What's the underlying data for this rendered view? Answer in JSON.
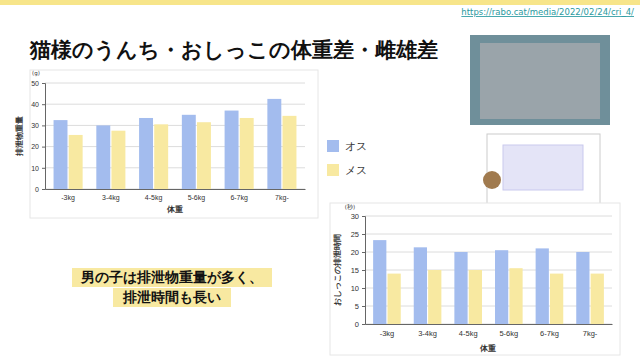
{
  "slide": {
    "title": "猫様のうんち・おしっこの体重差・雌雄差",
    "url": "https://rabo.cat/media/2022/02/24/cri_4/",
    "note_lines": [
      "男の子は排泄物重量が多く、",
      "排泄時間も長い"
    ]
  },
  "chart_data": [
    {
      "type": "bar",
      "x_label": "体重",
      "y_label": "排泄物重量",
      "y_unit": "(g)",
      "categories": [
        "-3kg",
        "3-4kg",
        "4-5kg",
        "5-6kg",
        "6-7kg",
        "7kg-"
      ],
      "series": [
        {
          "name": "オス",
          "color": "#a3bcee",
          "values": [
            32.5,
            30,
            33.5,
            35,
            37,
            42.5
          ]
        },
        {
          "name": "メス",
          "color": "#f8e9a1",
          "values": [
            25.5,
            27.5,
            30.5,
            31.5,
            33.5,
            34.5
          ]
        }
      ],
      "ylim": [
        0,
        50
      ],
      "yticks": [
        0,
        10,
        20,
        30,
        40,
        50
      ],
      "grid": true
    },
    {
      "type": "bar",
      "x_label": "体重",
      "y_label": "おしっこの排泄時間",
      "y_unit": "(秒)",
      "categories": [
        "-3kg",
        "3-4kg",
        "4-5kg",
        "5-6kg",
        "6-7kg",
        "7kg-"
      ],
      "series": [
        {
          "name": "オス",
          "color": "#a3bcee",
          "values": [
            23.3,
            21.3,
            20,
            20.5,
            21,
            20
          ]
        },
        {
          "name": "メス",
          "color": "#f8e9a1",
          "values": [
            14,
            15,
            15,
            15.5,
            14,
            14
          ]
        }
      ],
      "ylim": [
        0,
        30
      ],
      "yticks": [
        0,
        5,
        10,
        15,
        20,
        25,
        30
      ],
      "grid": true
    }
  ]
}
